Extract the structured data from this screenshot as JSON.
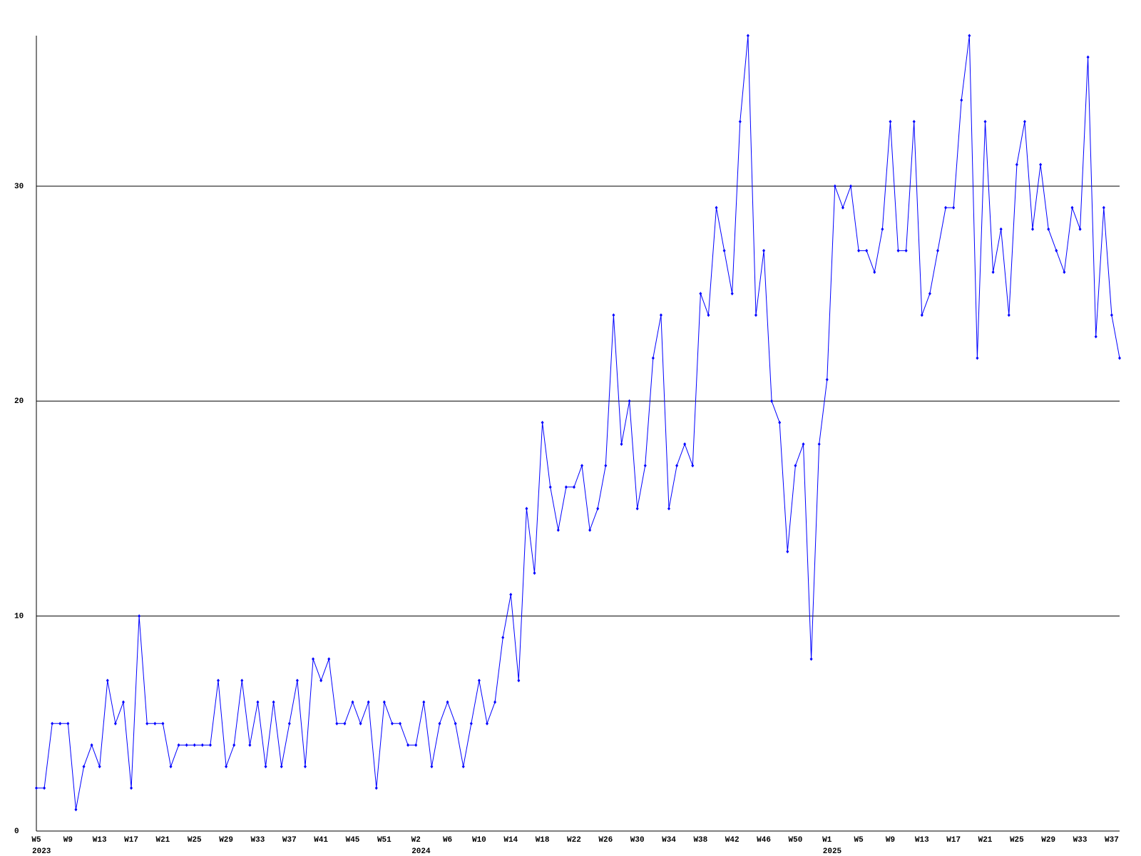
{
  "chart_data": {
    "type": "line",
    "categories": [
      "W5",
      null,
      null,
      null,
      "W9",
      null,
      null,
      null,
      "W13",
      null,
      null,
      null,
      "W17",
      null,
      null,
      null,
      "W21",
      null,
      null,
      null,
      "W25",
      null,
      null,
      null,
      "W29",
      null,
      null,
      null,
      "W33",
      null,
      null,
      null,
      "W37",
      null,
      null,
      null,
      "W41",
      null,
      null,
      null,
      "W45",
      null,
      null,
      null,
      "W51",
      null,
      null,
      null,
      "W2",
      null,
      null,
      null,
      "W6",
      null,
      null,
      null,
      "W10",
      null,
      null,
      null,
      "W14",
      null,
      null,
      null,
      "W18",
      null,
      null,
      null,
      "W22",
      null,
      null,
      null,
      "W26",
      null,
      null,
      null,
      "W30",
      null,
      null,
      null,
      "W34",
      null,
      null,
      null,
      "W38",
      null,
      null,
      null,
      "W42",
      null,
      null,
      null,
      "W46",
      null,
      null,
      null,
      "W50",
      null,
      null,
      null,
      "W1",
      null,
      null,
      null,
      "W5",
      null,
      null,
      null,
      "W9",
      null,
      null,
      null,
      "W13",
      null,
      null,
      null,
      "W17",
      null,
      null,
      null,
      "W21",
      null,
      null,
      null,
      "W25",
      null,
      null,
      null,
      "W29",
      null,
      null,
      null,
      "W33",
      null,
      null,
      null,
      "W37",
      null
    ],
    "years": [
      "2023",
      null,
      null,
      null,
      null,
      null,
      null,
      null,
      null,
      null,
      null,
      null,
      null,
      null,
      null,
      null,
      null,
      null,
      null,
      null,
      null,
      null,
      null,
      null,
      null,
      null,
      null,
      null,
      null,
      null,
      null,
      null,
      null,
      null,
      null,
      null,
      null,
      null,
      null,
      null,
      null,
      null,
      null,
      null,
      null,
      null,
      null,
      null,
      "2024",
      null,
      null,
      null,
      null,
      null,
      null,
      null,
      null,
      null,
      null,
      null,
      null,
      null,
      null,
      null,
      null,
      null,
      null,
      null,
      null,
      null,
      null,
      null,
      null,
      null,
      null,
      null,
      null,
      null,
      null,
      null,
      null,
      null,
      null,
      null,
      null,
      null,
      null,
      null,
      null,
      null,
      null,
      null,
      null,
      null,
      null,
      null,
      null,
      null,
      null,
      null,
      "2025",
      null,
      null,
      null,
      null,
      null,
      null,
      null,
      null,
      null,
      null,
      null,
      null,
      null,
      null,
      null,
      null,
      null,
      null,
      null,
      null,
      null,
      null,
      null,
      null,
      null,
      null,
      null,
      null,
      null,
      null,
      null,
      null,
      null,
      null,
      null,
      null,
      null
    ],
    "series": [
      {
        "color": "#0000ff",
        "values": [
          2,
          2,
          5,
          5,
          5,
          1,
          3,
          4,
          3,
          7,
          5,
          6,
          2,
          10,
          5,
          5,
          5,
          3,
          4,
          4,
          4,
          4,
          4,
          7,
          3,
          4,
          7,
          4,
          6,
          3,
          6,
          3,
          5,
          7,
          3,
          8,
          7,
          8,
          5,
          5,
          6,
          5,
          6,
          2,
          6,
          5,
          5,
          4,
          4,
          6,
          3,
          5,
          6,
          5,
          3,
          5,
          7,
          5,
          6,
          9,
          11,
          7,
          15,
          12,
          19,
          16,
          14,
          16,
          16,
          17,
          14,
          15,
          17,
          24,
          18,
          20,
          15,
          17,
          22,
          24,
          15,
          17,
          18,
          17,
          25,
          24,
          29,
          27,
          25,
          33,
          37,
          24,
          27,
          20,
          19,
          13,
          17,
          18,
          8,
          18,
          21,
          30,
          29,
          30,
          27,
          27,
          26,
          28,
          33,
          27,
          27,
          33,
          24,
          25,
          27,
          29,
          29,
          34,
          37,
          22,
          33,
          26,
          28,
          24,
          31,
          33,
          28,
          31,
          28,
          27,
          26,
          29,
          28,
          36,
          23,
          29,
          24,
          22
        ]
      }
    ],
    "ylim": [
      0,
      37
    ],
    "yticks": [
      0,
      10,
      20,
      30
    ],
    "grid": true
  }
}
